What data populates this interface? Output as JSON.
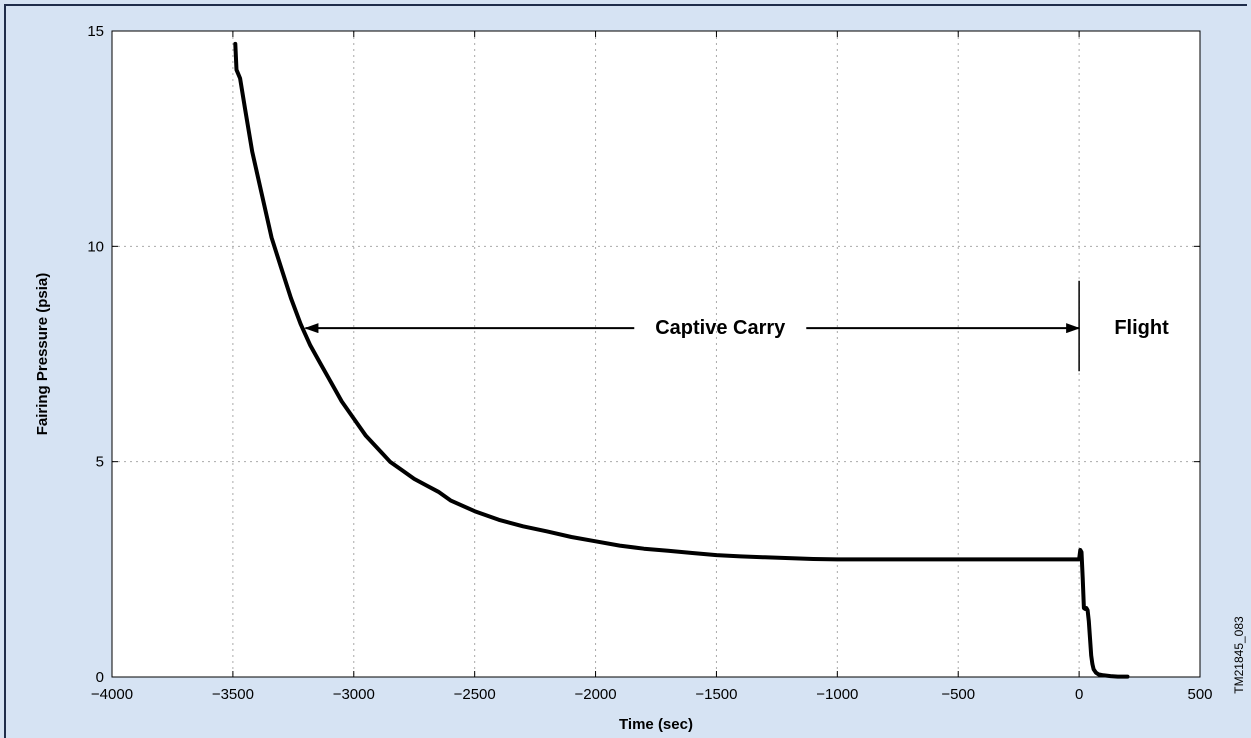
{
  "chart_data": {
    "type": "line",
    "title": "",
    "xlabel": "Time (sec)",
    "ylabel": "Fairing Pressure (psia)",
    "xlim": [
      -4000,
      500
    ],
    "ylim": [
      0,
      15
    ],
    "xticks": [
      -4000,
      -3500,
      -3000,
      -2500,
      -2000,
      -1500,
      -1000,
      -500,
      0,
      500
    ],
    "yticks": [
      0,
      5,
      10,
      15
    ],
    "grid": "dotted",
    "series": [
      {
        "name": "",
        "color": "#000000",
        "x": [
          -3490,
          -3485,
          -3470,
          -3450,
          -3420,
          -3380,
          -3340,
          -3300,
          -3260,
          -3220,
          -3180,
          -3140,
          -3100,
          -3050,
          -3000,
          -2950,
          -2900,
          -2850,
          -2800,
          -2750,
          -2700,
          -2650,
          -2600,
          -2500,
          -2400,
          -2300,
          -2200,
          -2100,
          -2000,
          -1900,
          -1800,
          -1700,
          -1600,
          -1500,
          -1400,
          -1300,
          -1200,
          -1100,
          -1000,
          -800,
          -600,
          -400,
          -200,
          0,
          5,
          10,
          15,
          20,
          25,
          30,
          35,
          40,
          45,
          50,
          55,
          60,
          70,
          80,
          100,
          130,
          160,
          200
        ],
        "y": [
          14.7,
          14.1,
          13.9,
          13.2,
          12.2,
          11.2,
          10.2,
          9.5,
          8.8,
          8.2,
          7.7,
          7.3,
          6.9,
          6.4,
          6.0,
          5.6,
          5.3,
          5.0,
          4.8,
          4.6,
          4.45,
          4.3,
          4.1,
          3.85,
          3.65,
          3.5,
          3.38,
          3.25,
          3.15,
          3.05,
          2.98,
          2.93,
          2.88,
          2.83,
          2.8,
          2.78,
          2.76,
          2.74,
          2.73,
          2.73,
          2.73,
          2.73,
          2.73,
          2.73,
          2.95,
          2.9,
          2.3,
          1.6,
          1.58,
          1.6,
          1.55,
          1.3,
          0.9,
          0.5,
          0.3,
          0.18,
          0.1,
          0.06,
          0.04,
          0.02,
          0.01,
          0.01
        ]
      }
    ],
    "annotations": {
      "captive_carry": "Captive Carry",
      "captive_carry_range": [
        -3200,
        0
      ],
      "flight": "Flight",
      "marker_x": 0,
      "marker_y_range": [
        7.1,
        9.2
      ],
      "arrow_y": 8.1
    },
    "figure_id": "TM21845_083"
  }
}
